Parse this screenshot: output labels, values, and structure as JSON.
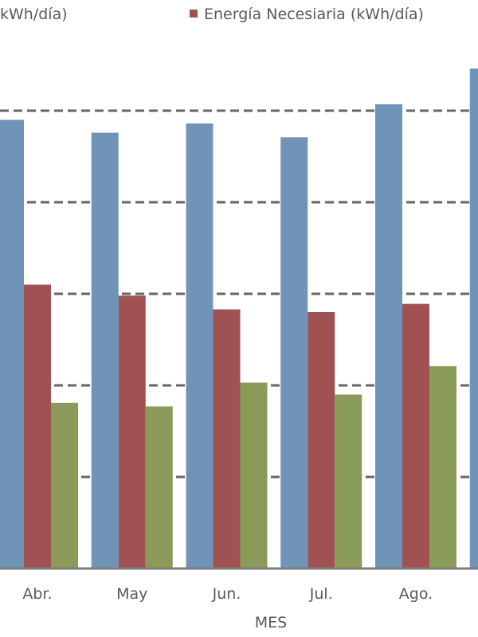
{
  "chart_data": {
    "type": "bar",
    "title": "",
    "xlabel": "MES",
    "ylabel": "",
    "categories": [
      "Abr.",
      "May",
      "Jun.",
      "Jul.",
      "Ago.",
      ""
    ],
    "series": [
      {
        "name": "kWh/día)",
        "color": "#7094b7",
        "values": [
          4.9,
          4.76,
          4.86,
          4.71,
          5.07,
          5.46
        ]
      },
      {
        "name": "Energía Necesiaria (kWh/día)",
        "color": "#a05252",
        "values": [
          3.1,
          2.98,
          2.83,
          2.8,
          2.89,
          null
        ]
      },
      {
        "name": "",
        "color": "#8a9a58",
        "values": [
          1.81,
          1.77,
          2.03,
          1.9,
          2.21,
          null
        ]
      }
    ],
    "ylim": [
      0,
      5.5
    ],
    "gridlines": [
      1,
      2,
      3,
      4,
      5
    ],
    "grid": true,
    "legend_position": "top"
  }
}
